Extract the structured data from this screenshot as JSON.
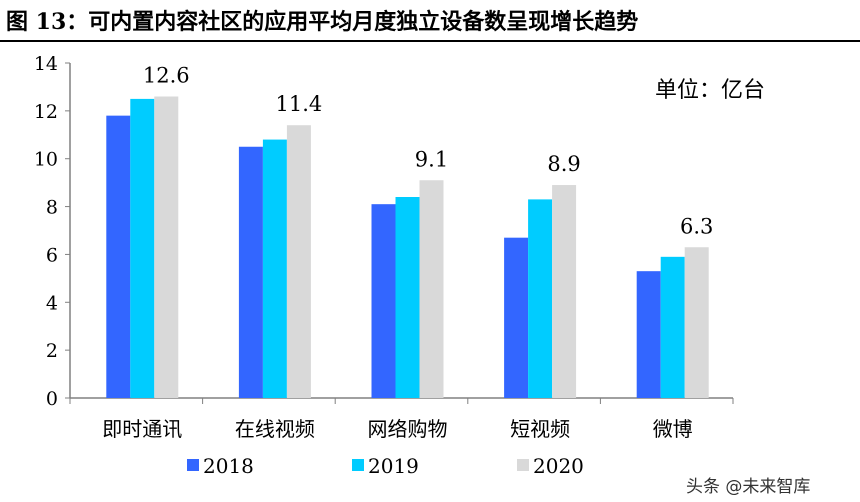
{
  "title": "图 13：可内置内容社区的应用平均月度独立设备数呈现增长趋势",
  "unit_label": "单位：亿台",
  "watermark": "头条 @未来智库",
  "chart_data": {
    "type": "bar",
    "title": "图 13：可内置内容社区的应用平均月度独立设备数呈现增长趋势",
    "categories": [
      "即时通讯",
      "在线视频",
      "网络购物",
      "短视频",
      "微博"
    ],
    "series": [
      {
        "name": "2018",
        "color": "#3366FF",
        "values": [
          11.8,
          10.5,
          8.1,
          6.7,
          5.3
        ]
      },
      {
        "name": "2019",
        "color": "#00CCFF",
        "values": [
          12.5,
          10.8,
          8.4,
          8.3,
          5.9
        ]
      },
      {
        "name": "2020",
        "color": "#D9D9D9",
        "values": [
          12.6,
          11.4,
          9.1,
          8.9,
          6.3
        ]
      }
    ],
    "data_labels": [
      "12.6",
      "11.4",
      "9.1",
      "8.9",
      "6.3"
    ],
    "ylim": [
      0,
      14
    ],
    "yticks": [
      0,
      2,
      4,
      6,
      8,
      10,
      12,
      14
    ],
    "grid": false,
    "legend": "bottom"
  }
}
